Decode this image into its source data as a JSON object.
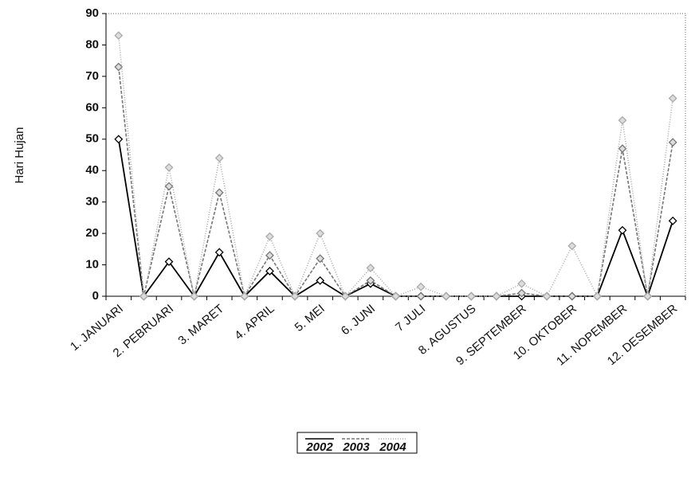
{
  "chart_data": {
    "type": "line",
    "y_label": "Hari Hujan",
    "categories": [
      "1. JANUARI",
      null,
      "2. PEBRUARI",
      null,
      "3. MARET",
      null,
      "4. APRIL",
      null,
      "5. MEI",
      null,
      "6. JUNI",
      null,
      "7 JULI",
      null,
      "8. AGUSTUS",
      null,
      "9. SEPTEMBER",
      null,
      "10. OKTOBER",
      null,
      "11. NOPEMBER",
      null,
      "12. DESEMBER"
    ],
    "series": [
      {
        "name": "2002",
        "color": "#000000",
        "values": [
          50,
          0,
          11,
          0,
          14,
          0,
          8,
          0,
          5,
          0,
          4,
          0,
          0,
          0,
          0,
          0,
          0,
          0,
          0,
          0,
          21,
          0,
          24
        ]
      },
      {
        "name": "2003",
        "color": "#777777",
        "values": [
          73,
          0,
          35,
          0,
          33,
          0,
          13,
          0,
          12,
          0,
          5,
          0,
          0,
          0,
          0,
          0,
          1,
          0,
          0,
          0,
          47,
          0,
          49
        ]
      },
      {
        "name": "2004",
        "color": "#aaaaaa",
        "values": [
          83,
          0,
          41,
          0,
          44,
          0,
          19,
          0,
          20,
          0,
          9,
          0,
          3,
          0,
          0,
          0,
          4,
          0,
          16,
          0,
          56,
          0,
          63
        ]
      }
    ],
    "ylim": [
      0,
      90
    ],
    "yticks": [
      0,
      10,
      20,
      30,
      40,
      50,
      60,
      70,
      80,
      90
    ],
    "grid": false,
    "legend": "bottom"
  }
}
